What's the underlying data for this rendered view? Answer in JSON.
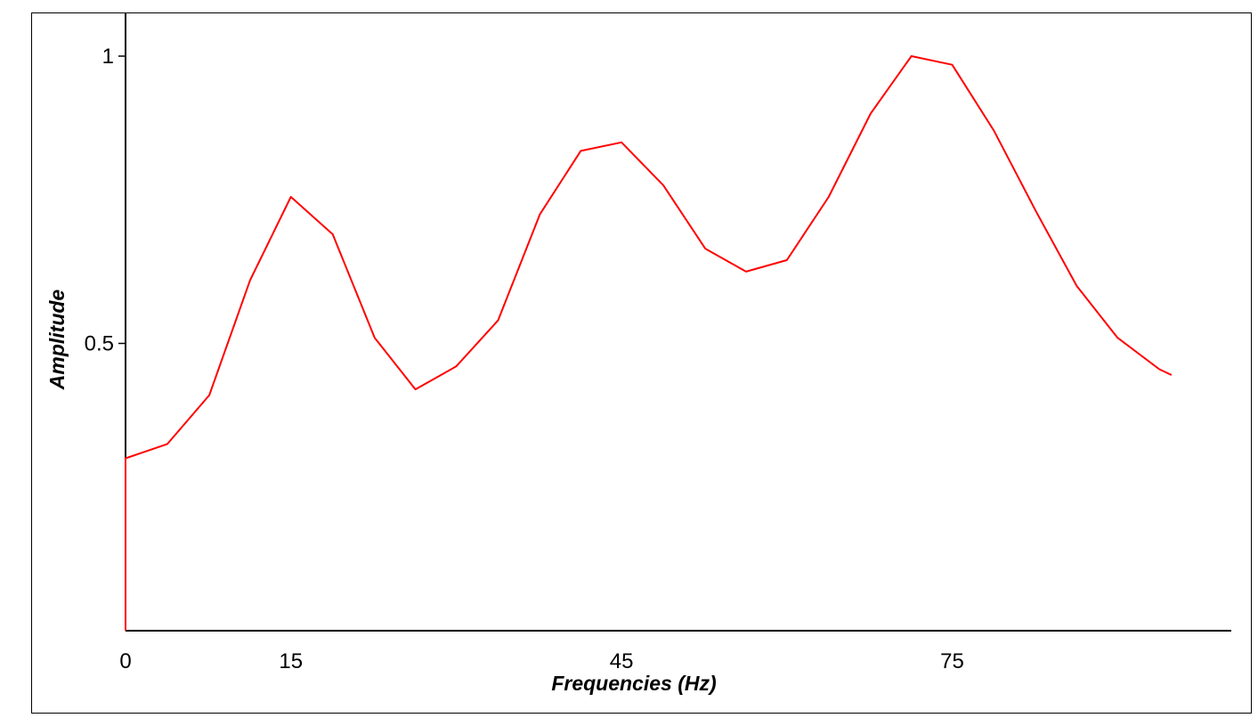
{
  "chart_data": {
    "type": "line",
    "title": "",
    "xlabel": "Frequencies (Hz)",
    "ylabel": "Amplitude",
    "xlim": [
      0,
      100
    ],
    "ylim": [
      0,
      1
    ],
    "x_ticks": [
      0,
      15,
      45,
      75
    ],
    "x_tick_labels": [
      "0",
      "15",
      "45",
      "75"
    ],
    "y_ticks": [
      0.5,
      1
    ],
    "y_tick_labels": [
      "0.5",
      "1"
    ],
    "grid": false,
    "legend": "none",
    "series": [
      {
        "color": "#ff0000",
        "x": [
          0,
          0,
          3.8,
          7.6,
          11.3,
          15,
          18.8,
          22.6,
          26.3,
          30,
          33.8,
          37.6,
          41.3,
          45,
          48.8,
          52.6,
          56.3,
          60,
          63.8,
          67.6,
          71.3,
          75,
          78.8,
          82.6,
          86.3,
          90,
          93.8,
          94.9
        ],
        "y": [
          0,
          0.3,
          0.325,
          0.41,
          0.61,
          0.755,
          0.69,
          0.51,
          0.42,
          0.46,
          0.54,
          0.725,
          0.835,
          0.85,
          0.775,
          0.665,
          0.625,
          0.645,
          0.755,
          0.9,
          1.0,
          0.985,
          0.87,
          0.73,
          0.6,
          0.51,
          0.455,
          0.445
        ]
      }
    ]
  }
}
